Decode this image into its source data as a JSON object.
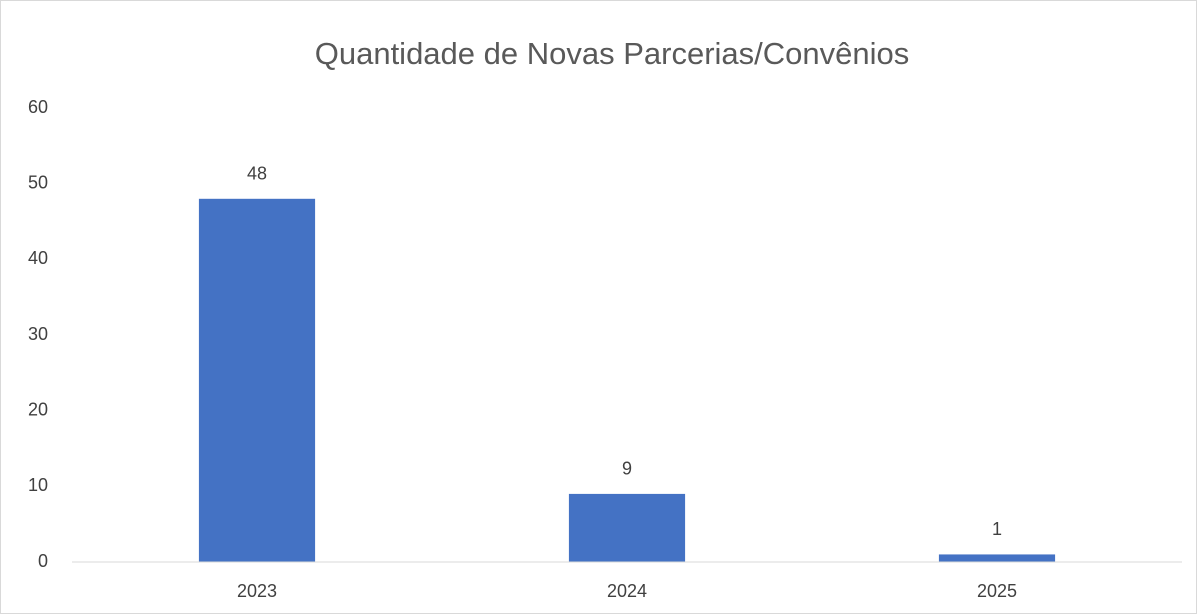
{
  "chart_data": {
    "type": "bar",
    "title": "Quantidade de Novas Parcerias/Convênios",
    "categories": [
      "2023",
      "2024",
      "2025"
    ],
    "values": [
      48,
      9,
      1
    ],
    "color": "#4472c4",
    "ylim": [
      0,
      60
    ],
    "yticks": [
      0,
      10,
      20,
      30,
      40,
      50,
      60
    ],
    "grid": false
  }
}
